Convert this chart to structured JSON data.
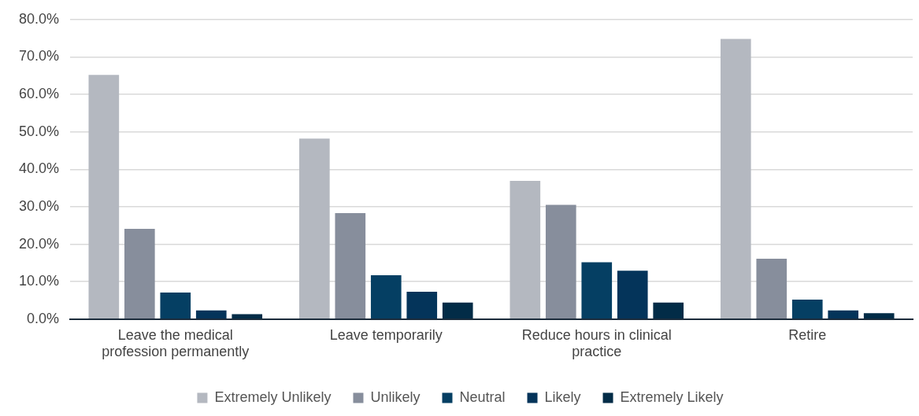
{
  "chart_data": {
    "type": "bar",
    "categories": [
      "Leave the medical profession permanently",
      "Leave temporarily",
      "Reduce hours in clinical practice",
      "Retire"
    ],
    "series": [
      {
        "name": "Extremely Unlikely",
        "color": "#b4b8c0",
        "values": [
          65.2,
          48.2,
          36.9,
          74.8
        ]
      },
      {
        "name": "Unlikely",
        "color": "#878e9c",
        "values": [
          24.1,
          28.3,
          30.5,
          16.1
        ]
      },
      {
        "name": "Neutral",
        "color": "#053f63",
        "values": [
          7.1,
          11.7,
          15.2,
          5.2
        ]
      },
      {
        "name": "Likely",
        "color": "#04345a",
        "values": [
          2.3,
          7.3,
          12.9,
          2.3
        ]
      },
      {
        "name": "Extremely Likely",
        "color": "#022c47",
        "values": [
          1.3,
          4.4,
          4.4,
          1.6
        ]
      }
    ],
    "ylim": [
      0,
      80
    ],
    "yticks": [
      {
        "value": 0,
        "label": "0.0%"
      },
      {
        "value": 10,
        "label": "10.0%"
      },
      {
        "value": 20,
        "label": "20.0%"
      },
      {
        "value": 30,
        "label": "30.0%"
      },
      {
        "value": 40,
        "label": "40.0%"
      },
      {
        "value": 50,
        "label": "50.0%"
      },
      {
        "value": 60,
        "label": "60.0%"
      },
      {
        "value": 70,
        "label": "70.0%"
      },
      {
        "value": 80,
        "label": "80.0%"
      }
    ],
    "grid": "y",
    "legend": "bottom"
  }
}
